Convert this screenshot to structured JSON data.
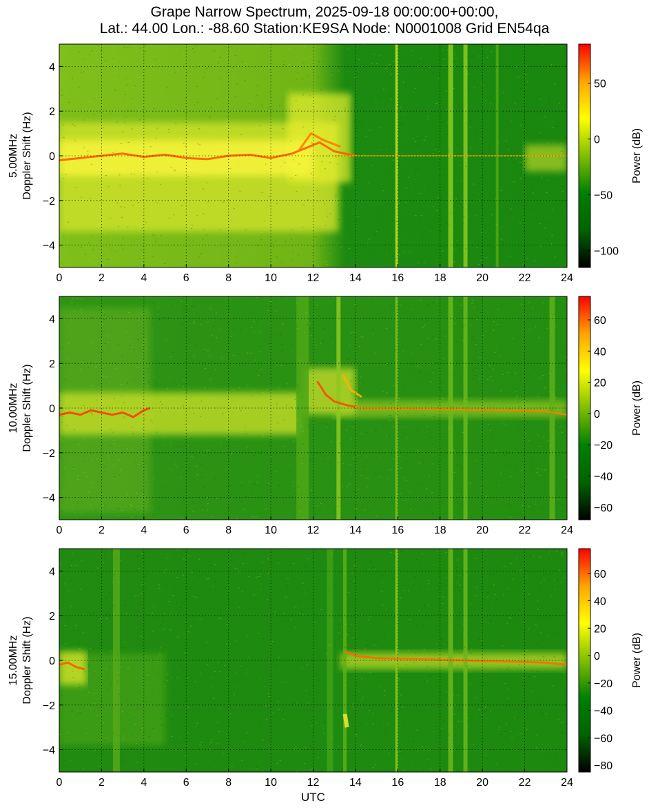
{
  "title_lines": [
    "Grape Narrow Spectrum, 2025-09-18 00:00:00+00:00,",
    "Lat.: 44.00 Lon.: -88.60 Station:KE9SA Node: N0001008 Grid EN54qa"
  ],
  "xlabel": "UTC",
  "colors": {
    "colormap": [
      "#000000",
      "#006400",
      "#008000",
      "#7fbf00",
      "#ffff00",
      "#ffa500",
      "#ff0000"
    ],
    "background_green": "#0f7d08"
  },
  "chart_data": [
    {
      "type": "heatmap",
      "ylabel_lines": [
        "5.00MHz",
        "Doppler Shift (Hz)"
      ],
      "xlim": [
        0,
        24
      ],
      "ylim": [
        -5,
        5
      ],
      "xticks": [
        0,
        2,
        4,
        6,
        8,
        10,
        12,
        14,
        16,
        18,
        20,
        22,
        24
      ],
      "yticks": [
        -4,
        -2,
        0,
        2,
        4
      ],
      "grid": true,
      "colorbar": {
        "label": "Power (dB)",
        "range": [
          -115,
          85
        ],
        "ticks": [
          -100,
          -50,
          0,
          50
        ]
      }
    },
    {
      "type": "heatmap",
      "ylabel_lines": [
        "10.00MHz",
        "Doppler Shift (Hz)"
      ],
      "xlim": [
        0,
        24
      ],
      "ylim": [
        -5,
        5
      ],
      "xticks": [
        0,
        2,
        4,
        6,
        8,
        10,
        12,
        14,
        16,
        18,
        20,
        22,
        24
      ],
      "yticks": [
        -4,
        -2,
        0,
        2,
        4
      ],
      "grid": true,
      "colorbar": {
        "label": "Power (dB)",
        "range": [
          -68,
          75
        ],
        "ticks": [
          -60,
          -40,
          -20,
          0,
          20,
          40,
          60
        ]
      }
    },
    {
      "type": "heatmap",
      "ylabel_lines": [
        "15.00MHz",
        "Doppler Shift (Hz)"
      ],
      "xlim": [
        0,
        24
      ],
      "ylim": [
        -5,
        5
      ],
      "xticks": [
        0,
        2,
        4,
        6,
        8,
        10,
        12,
        14,
        16,
        18,
        20,
        22,
        24
      ],
      "yticks": [
        -4,
        -2,
        0,
        2,
        4
      ],
      "grid": true,
      "colorbar": {
        "label": "Power (dB)",
        "range": [
          -85,
          78
        ],
        "ticks": [
          -80,
          -60,
          -40,
          -20,
          0,
          20,
          40,
          60
        ]
      }
    }
  ]
}
